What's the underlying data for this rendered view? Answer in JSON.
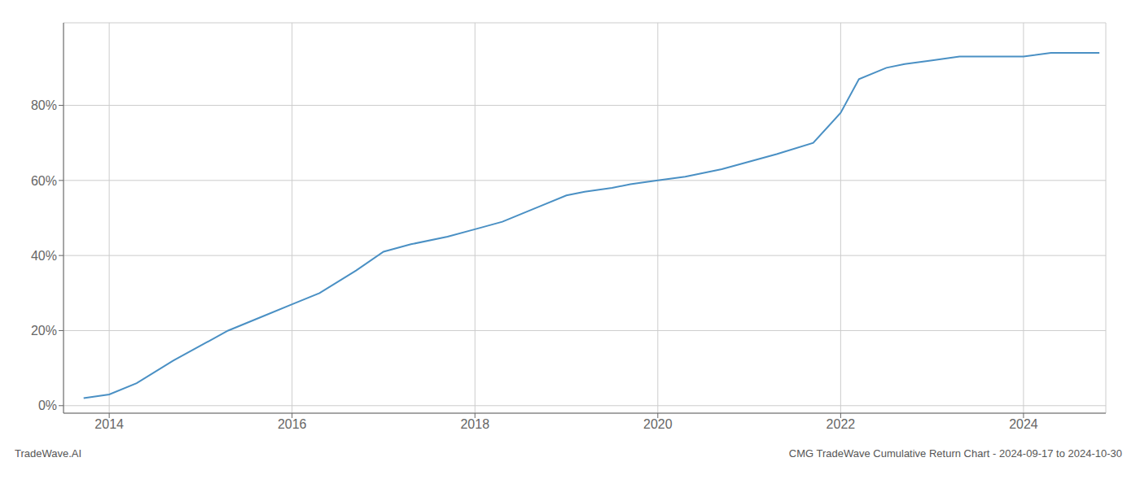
{
  "chart_data": {
    "type": "line",
    "x": [
      2013.72,
      2014.0,
      2014.3,
      2014.7,
      2015.0,
      2015.3,
      2015.7,
      2016.0,
      2016.3,
      2016.7,
      2017.0,
      2017.3,
      2017.7,
      2018.0,
      2018.3,
      2018.7,
      2019.0,
      2019.2,
      2019.5,
      2019.7,
      2020.0,
      2020.3,
      2020.7,
      2021.0,
      2021.3,
      2021.7,
      2022.0,
      2022.2,
      2022.5,
      2022.7,
      2023.0,
      2023.3,
      2023.7,
      2024.0,
      2024.3,
      2024.7,
      2024.83
    ],
    "values": [
      0.02,
      0.03,
      0.06,
      0.12,
      0.16,
      0.2,
      0.24,
      0.27,
      0.3,
      0.36,
      0.41,
      0.43,
      0.45,
      0.47,
      0.49,
      0.53,
      0.56,
      0.57,
      0.58,
      0.59,
      0.6,
      0.61,
      0.63,
      0.65,
      0.67,
      0.7,
      0.78,
      0.87,
      0.9,
      0.91,
      0.92,
      0.93,
      0.93,
      0.93,
      0.94,
      0.94,
      0.94
    ],
    "color": "#4a90c4",
    "xlim": [
      2013.5,
      2024.9
    ],
    "ylim": [
      -0.02,
      1.02
    ],
    "xticks": [
      2014,
      2016,
      2018,
      2020,
      2022,
      2024
    ],
    "yticks": [
      {
        "value": 0.0,
        "label": "0%"
      },
      {
        "value": 0.2,
        "label": "20%"
      },
      {
        "value": 0.4,
        "label": "40%"
      },
      {
        "value": 0.6,
        "label": "60%"
      },
      {
        "value": 0.8,
        "label": "80%"
      }
    ],
    "grid": true,
    "annotations": [
      "TradeWave.AI",
      "CMG TradeWave Cumulative Return Chart - 2024-09-17 to 2024-10-30"
    ]
  }
}
